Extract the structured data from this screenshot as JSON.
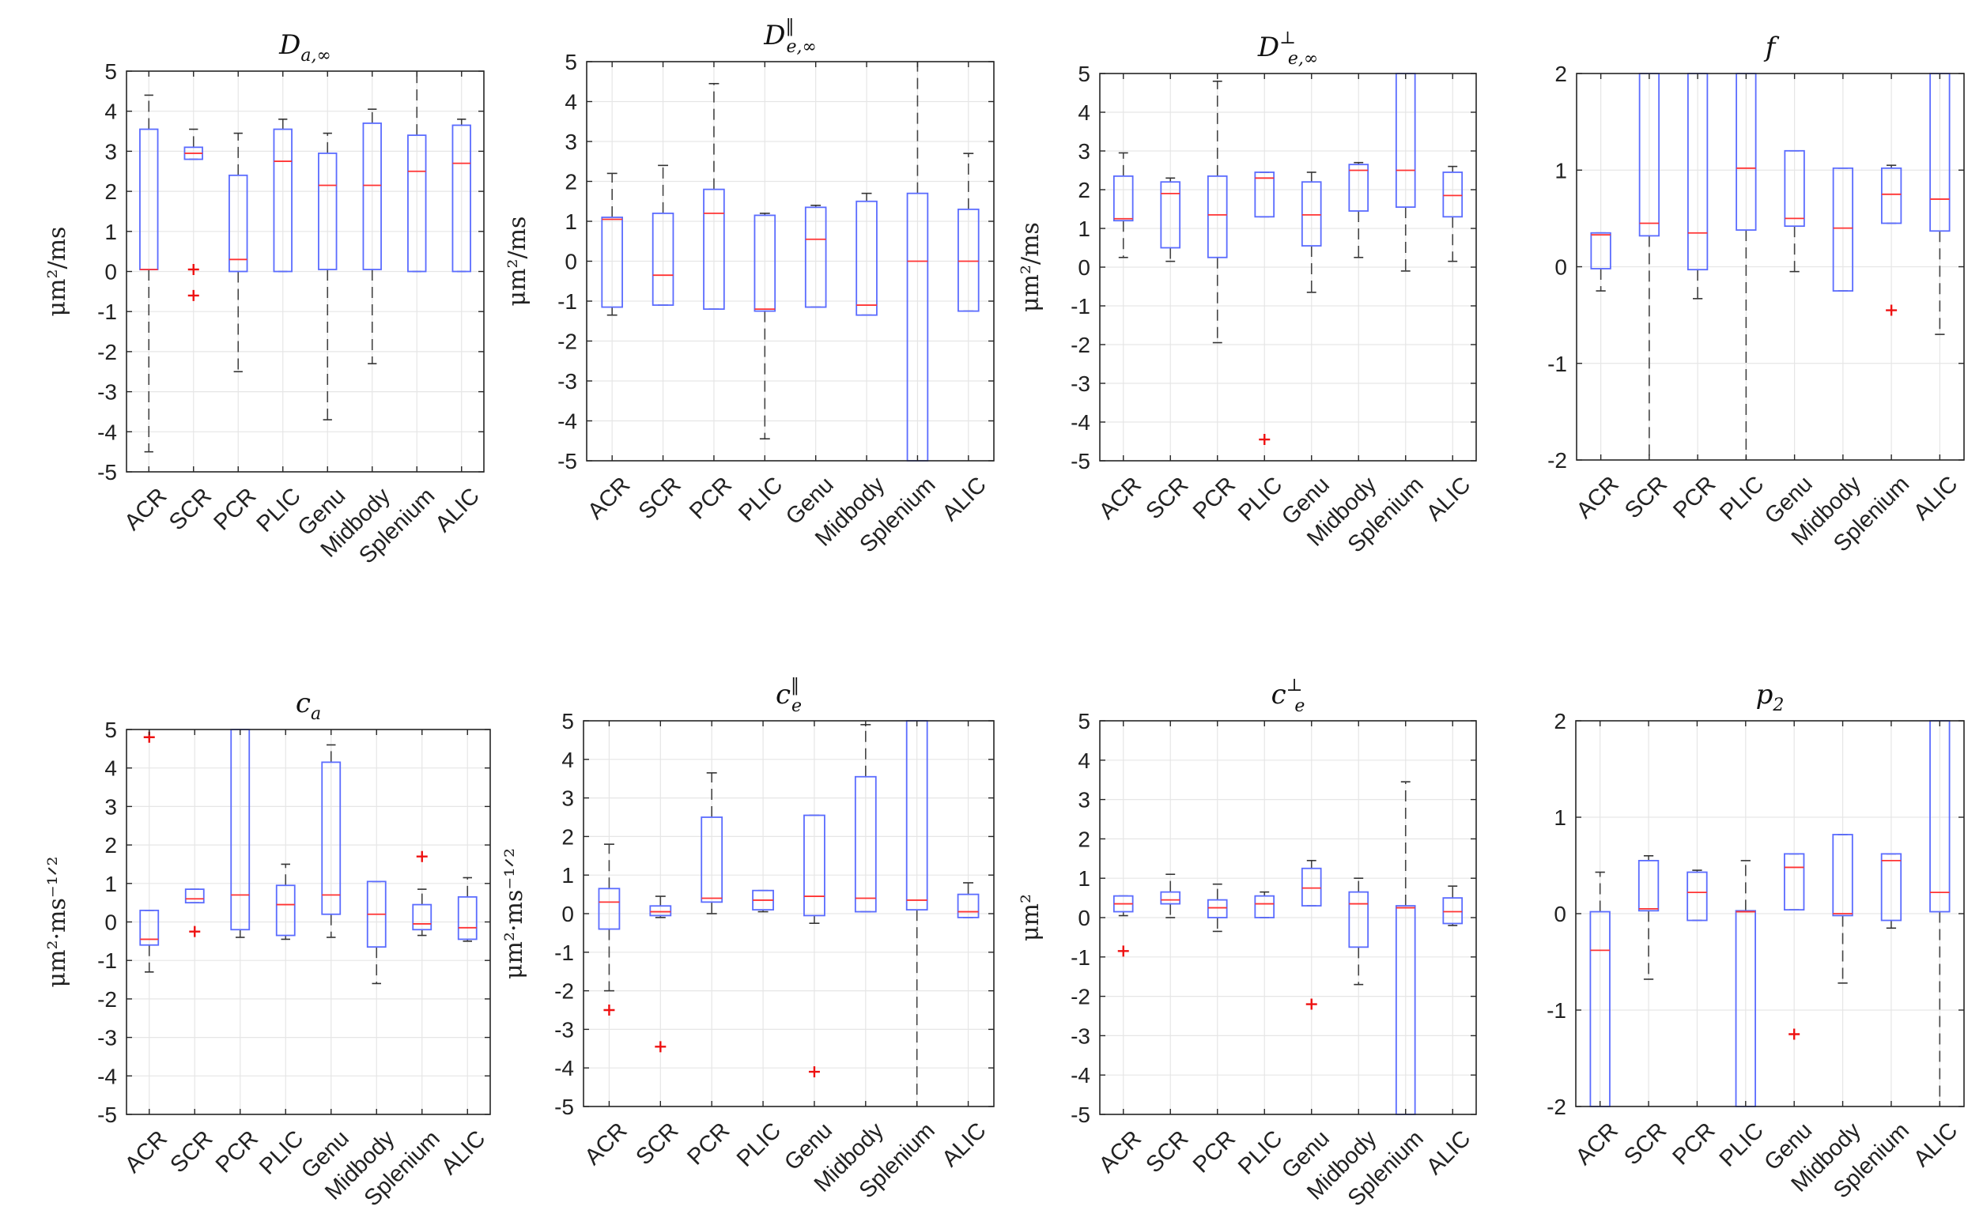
{
  "figure": {
    "box_color": "#5b6cff",
    "median_color": "#ff3333",
    "outlier_color": "#ee1111",
    "grid_color": "#e6e6e6"
  },
  "chart_data": [
    {
      "type": "boxplot",
      "title_base": "D",
      "title_sub": "a,∞",
      "title_sup": "",
      "ylabel": "μm²/ms",
      "ylim": [
        -5,
        5
      ],
      "yticks": [
        "-5",
        "-4",
        "-3",
        "-2",
        "-1",
        "0",
        "1",
        "2",
        "3",
        "4",
        "5"
      ],
      "categories": [
        "ACR",
        "SCR",
        "PCR",
        "PLIC",
        "Genu",
        "Midbody",
        "Splenium",
        "ALIC"
      ],
      "boxes": [
        {
          "wlo": -4.5,
          "q1": 0.05,
          "med": 0.05,
          "q3": 3.55,
          "whi": 4.4,
          "outliers": []
        },
        {
          "wlo": 2.8,
          "q1": 2.8,
          "med": 2.95,
          "q3": 3.1,
          "whi": 3.55,
          "outliers": [
            0.05,
            -0.6
          ]
        },
        {
          "wlo": -2.5,
          "q1": 0.0,
          "med": 0.3,
          "q3": 2.4,
          "whi": 3.45,
          "outliers": []
        },
        {
          "wlo": 0.0,
          "q1": 0.0,
          "med": 2.75,
          "q3": 3.55,
          "whi": 3.8,
          "outliers": []
        },
        {
          "wlo": -3.7,
          "q1": 0.05,
          "med": 2.15,
          "q3": 2.95,
          "whi": 3.45,
          "outliers": []
        },
        {
          "wlo": -2.3,
          "q1": 0.05,
          "med": 2.15,
          "q3": 3.7,
          "whi": 4.05,
          "outliers": []
        },
        {
          "wlo": 0.0,
          "q1": 0.0,
          "med": 2.5,
          "q3": 3.4,
          "whi": 5.0,
          "outliers": []
        },
        {
          "wlo": 0.0,
          "q1": 0.0,
          "med": 2.7,
          "q3": 3.65,
          "whi": 3.8,
          "outliers": []
        }
      ]
    },
    {
      "type": "boxplot",
      "title_base": "D",
      "title_sub": "e,∞",
      "title_sup": "‖",
      "ylabel": "μm²/ms",
      "ylim": [
        -5,
        5
      ],
      "yticks": [
        "-5",
        "-4",
        "-3",
        "-2",
        "-1",
        "0",
        "1",
        "2",
        "3",
        "4",
        "5"
      ],
      "categories": [
        "ACR",
        "SCR",
        "PCR",
        "PLIC",
        "Genu",
        "Midbody",
        "Splenium",
        "ALIC"
      ],
      "boxes": [
        {
          "wlo": -1.35,
          "q1": -1.15,
          "med": 1.05,
          "q3": 1.1,
          "whi": 2.2,
          "outliers": []
        },
        {
          "wlo": -1.1,
          "q1": -1.1,
          "med": -0.35,
          "q3": 1.2,
          "whi": 2.4,
          "outliers": []
        },
        {
          "wlo": -1.2,
          "q1": -1.2,
          "med": 1.2,
          "q3": 1.8,
          "whi": 4.45,
          "outliers": []
        },
        {
          "wlo": -4.45,
          "q1": -1.25,
          "med": -1.2,
          "q3": 1.15,
          "whi": 1.2,
          "outliers": []
        },
        {
          "wlo": -1.15,
          "q1": -1.15,
          "med": 0.55,
          "q3": 1.35,
          "whi": 1.4,
          "outliers": []
        },
        {
          "wlo": -1.35,
          "q1": -1.35,
          "med": -1.1,
          "q3": 1.5,
          "whi": 1.7,
          "outliers": []
        },
        {
          "wlo": -5.0,
          "q1": -5.0,
          "med": 0.0,
          "q3": 1.7,
          "whi": 5.0,
          "outliers": []
        },
        {
          "wlo": -1.25,
          "q1": -1.25,
          "med": 0.0,
          "q3": 1.3,
          "whi": 2.7,
          "outliers": []
        }
      ]
    },
    {
      "type": "boxplot",
      "title_base": "D",
      "title_sub": "e,∞",
      "title_sup": "⊥",
      "ylabel": "μm²/ms",
      "ylim": [
        -5,
        5
      ],
      "yticks": [
        "-5",
        "-4",
        "-3",
        "-2",
        "-1",
        "0",
        "1",
        "2",
        "3",
        "4",
        "5"
      ],
      "categories": [
        "ACR",
        "SCR",
        "PCR",
        "PLIC",
        "Genu",
        "Midbody",
        "Splenium",
        "ALIC"
      ],
      "boxes": [
        {
          "wlo": 0.25,
          "q1": 1.2,
          "med": 1.25,
          "q3": 2.35,
          "whi": 2.95,
          "outliers": []
        },
        {
          "wlo": 0.15,
          "q1": 0.5,
          "med": 1.9,
          "q3": 2.2,
          "whi": 2.3,
          "outliers": []
        },
        {
          "wlo": -1.95,
          "q1": 0.25,
          "med": 1.35,
          "q3": 2.35,
          "whi": 4.8,
          "outliers": []
        },
        {
          "wlo": 1.3,
          "q1": 1.3,
          "med": 2.3,
          "q3": 2.45,
          "whi": 2.45,
          "outliers": [
            -4.45
          ]
        },
        {
          "wlo": -0.65,
          "q1": 0.55,
          "med": 1.35,
          "q3": 2.2,
          "whi": 2.45,
          "outliers": []
        },
        {
          "wlo": 0.25,
          "q1": 1.45,
          "med": 2.5,
          "q3": 2.65,
          "whi": 2.7,
          "outliers": []
        },
        {
          "wlo": -0.1,
          "q1": 1.55,
          "med": 2.5,
          "q3": 5.0,
          "whi": 5.0,
          "outliers": []
        },
        {
          "wlo": 0.15,
          "q1": 1.3,
          "med": 1.85,
          "q3": 2.45,
          "whi": 2.6,
          "outliers": []
        }
      ]
    },
    {
      "type": "boxplot",
      "title_base": "f",
      "title_sub": "",
      "title_sup": "",
      "ylabel": "",
      "ylim": [
        -2,
        2
      ],
      "yticks": [
        "-2",
        "-1",
        "0",
        "1",
        "2"
      ],
      "categories": [
        "ACR",
        "SCR",
        "PCR",
        "PLIC",
        "Genu",
        "Midbody",
        "Splenium",
        "ALIC"
      ],
      "boxes": [
        {
          "wlo": -0.25,
          "q1": -0.02,
          "med": 0.33,
          "q3": 0.35,
          "whi": 0.35,
          "outliers": []
        },
        {
          "wlo": -2.0,
          "q1": 0.32,
          "med": 0.45,
          "q3": 2.0,
          "whi": 2.0,
          "outliers": []
        },
        {
          "wlo": -0.33,
          "q1": -0.03,
          "med": 0.35,
          "q3": 2.0,
          "whi": 2.0,
          "outliers": []
        },
        {
          "wlo": -2.0,
          "q1": 0.38,
          "med": 1.02,
          "q3": 2.0,
          "whi": 2.0,
          "outliers": []
        },
        {
          "wlo": -0.05,
          "q1": 0.42,
          "med": 0.5,
          "q3": 1.2,
          "whi": 1.2,
          "outliers": []
        },
        {
          "wlo": -0.25,
          "q1": -0.25,
          "med": 0.4,
          "q3": 1.02,
          "whi": 1.02,
          "outliers": []
        },
        {
          "wlo": 0.45,
          "q1": 0.45,
          "med": 0.75,
          "q3": 1.02,
          "whi": 1.05,
          "outliers": [
            -0.45
          ]
        },
        {
          "wlo": -0.7,
          "q1": 0.37,
          "med": 0.7,
          "q3": 2.0,
          "whi": 2.0,
          "outliers": []
        }
      ]
    },
    {
      "type": "boxplot",
      "title_base": "c",
      "title_sub": "a",
      "title_sup": "",
      "ylabel": "μm²·ms⁻¹ᐟ²",
      "ylim": [
        -5,
        5
      ],
      "yticks": [
        "-5",
        "-4",
        "-3",
        "-2",
        "-1",
        "0",
        "1",
        "2",
        "3",
        "4",
        "5"
      ],
      "categories": [
        "ACR",
        "SCR",
        "PCR",
        "PLIC",
        "Genu",
        "Midbody",
        "Splenium",
        "ALIC"
      ],
      "boxes": [
        {
          "wlo": -1.3,
          "q1": -0.6,
          "med": -0.45,
          "q3": 0.3,
          "whi": 0.3,
          "outliers": [
            4.8
          ]
        },
        {
          "wlo": 0.5,
          "q1": 0.5,
          "med": 0.6,
          "q3": 0.85,
          "whi": 0.85,
          "outliers": [
            -0.25
          ]
        },
        {
          "wlo": -0.4,
          "q1": -0.2,
          "med": 0.7,
          "q3": 5.0,
          "whi": 5.0,
          "outliers": []
        },
        {
          "wlo": -0.45,
          "q1": -0.35,
          "med": 0.45,
          "q3": 0.95,
          "whi": 1.5,
          "outliers": []
        },
        {
          "wlo": -0.4,
          "q1": 0.2,
          "med": 0.7,
          "q3": 4.15,
          "whi": 4.6,
          "outliers": []
        },
        {
          "wlo": -1.6,
          "q1": -0.65,
          "med": 0.2,
          "q3": 1.05,
          "whi": 1.05,
          "outliers": []
        },
        {
          "wlo": -0.35,
          "q1": -0.2,
          "med": -0.05,
          "q3": 0.45,
          "whi": 0.85,
          "outliers": [
            1.7
          ]
        },
        {
          "wlo": -0.5,
          "q1": -0.45,
          "med": -0.15,
          "q3": 0.65,
          "whi": 1.15,
          "outliers": []
        }
      ]
    },
    {
      "type": "boxplot",
      "title_base": "c",
      "title_sub": "e",
      "title_sup": "‖",
      "ylabel": "μm²·ms⁻¹ᐟ²",
      "ylim": [
        -5,
        5
      ],
      "yticks": [
        "-5",
        "-4",
        "-3",
        "-2",
        "-1",
        "0",
        "1",
        "2",
        "3",
        "4",
        "5"
      ],
      "categories": [
        "ACR",
        "SCR",
        "PCR",
        "PLIC",
        "Genu",
        "Midbody",
        "Splenium",
        "ALIC"
      ],
      "boxes": [
        {
          "wlo": -2.0,
          "q1": -0.4,
          "med": 0.3,
          "q3": 0.65,
          "whi": 1.8,
          "outliers": [
            -2.5
          ]
        },
        {
          "wlo": -0.1,
          "q1": -0.05,
          "med": 0.05,
          "q3": 0.2,
          "whi": 0.45,
          "outliers": [
            -3.45
          ]
        },
        {
          "wlo": 0.0,
          "q1": 0.3,
          "med": 0.4,
          "q3": 2.5,
          "whi": 3.65,
          "outliers": []
        },
        {
          "wlo": 0.05,
          "q1": 0.1,
          "med": 0.35,
          "q3": 0.6,
          "whi": 0.6,
          "outliers": []
        },
        {
          "wlo": -0.25,
          "q1": -0.05,
          "med": 0.45,
          "q3": 2.55,
          "whi": 2.55,
          "outliers": [
            -4.1
          ]
        },
        {
          "wlo": 0.05,
          "q1": 0.05,
          "med": 0.4,
          "q3": 3.55,
          "whi": 4.9,
          "outliers": []
        },
        {
          "wlo": -5.0,
          "q1": 0.1,
          "med": 0.35,
          "q3": 5.0,
          "whi": 5.0,
          "outliers": []
        },
        {
          "wlo": -0.1,
          "q1": -0.1,
          "med": 0.05,
          "q3": 0.5,
          "whi": 0.8,
          "outliers": []
        }
      ]
    },
    {
      "type": "boxplot",
      "title_base": "c",
      "title_sub": "e",
      "title_sup": "⊥",
      "ylabel": "μm²",
      "ylim": [
        -5,
        5
      ],
      "yticks": [
        "-5",
        "-4",
        "-3",
        "-2",
        "-1",
        "0",
        "1",
        "2",
        "3",
        "4",
        "5"
      ],
      "categories": [
        "ACR",
        "SCR",
        "PCR",
        "PLIC",
        "Genu",
        "Midbody",
        "Splenium",
        "ALIC"
      ],
      "boxes": [
        {
          "wlo": 0.05,
          "q1": 0.15,
          "med": 0.35,
          "q3": 0.55,
          "whi": 0.55,
          "outliers": [
            -0.85
          ]
        },
        {
          "wlo": 0.0,
          "q1": 0.35,
          "med": 0.45,
          "q3": 0.65,
          "whi": 1.1,
          "outliers": []
        },
        {
          "wlo": -0.35,
          "q1": 0.0,
          "med": 0.25,
          "q3": 0.45,
          "whi": 0.85,
          "outliers": []
        },
        {
          "wlo": 0.0,
          "q1": 0.0,
          "med": 0.35,
          "q3": 0.55,
          "whi": 0.65,
          "outliers": []
        },
        {
          "wlo": 0.3,
          "q1": 0.3,
          "med": 0.75,
          "q3": 1.25,
          "whi": 1.45,
          "outliers": [
            -2.2
          ]
        },
        {
          "wlo": -1.7,
          "q1": -0.75,
          "med": 0.35,
          "q3": 0.65,
          "whi": 1.0,
          "outliers": []
        },
        {
          "wlo": -5.0,
          "q1": -5.0,
          "med": 0.25,
          "q3": 0.3,
          "whi": 3.45,
          "outliers": []
        },
        {
          "wlo": -0.2,
          "q1": -0.15,
          "med": 0.15,
          "q3": 0.5,
          "whi": 0.8,
          "outliers": []
        }
      ]
    },
    {
      "type": "boxplot",
      "title_base": "p",
      "title_sub": "2",
      "title_sup": "",
      "ylabel": "",
      "ylim": [
        -2,
        2
      ],
      "yticks": [
        "-2",
        "-1",
        "0",
        "1",
        "2"
      ],
      "categories": [
        "ACR",
        "SCR",
        "PCR",
        "PLIC",
        "Genu",
        "Midbody",
        "Splenium",
        "ALIC"
      ],
      "boxes": [
        {
          "wlo": -2.0,
          "q1": -2.0,
          "med": -0.38,
          "q3": 0.02,
          "whi": 0.43,
          "outliers": []
        },
        {
          "wlo": -0.68,
          "q1": 0.03,
          "med": 0.05,
          "q3": 0.55,
          "whi": 0.6,
          "outliers": []
        },
        {
          "wlo": -0.07,
          "q1": -0.07,
          "med": 0.22,
          "q3": 0.43,
          "whi": 0.45,
          "outliers": []
        },
        {
          "wlo": -2.0,
          "q1": -2.0,
          "med": 0.02,
          "q3": 0.03,
          "whi": 0.55,
          "outliers": []
        },
        {
          "wlo": 0.04,
          "q1": 0.04,
          "med": 0.48,
          "q3": 0.62,
          "whi": 0.62,
          "outliers": [
            -1.25
          ]
        },
        {
          "wlo": -0.72,
          "q1": -0.02,
          "med": 0.0,
          "q3": 0.82,
          "whi": 0.82,
          "outliers": []
        },
        {
          "wlo": -0.15,
          "q1": -0.07,
          "med": 0.55,
          "q3": 0.62,
          "whi": 0.62,
          "outliers": []
        },
        {
          "wlo": -2.0,
          "q1": 0.02,
          "med": 0.22,
          "q3": 2.0,
          "whi": 2.0,
          "outliers": []
        }
      ]
    }
  ]
}
